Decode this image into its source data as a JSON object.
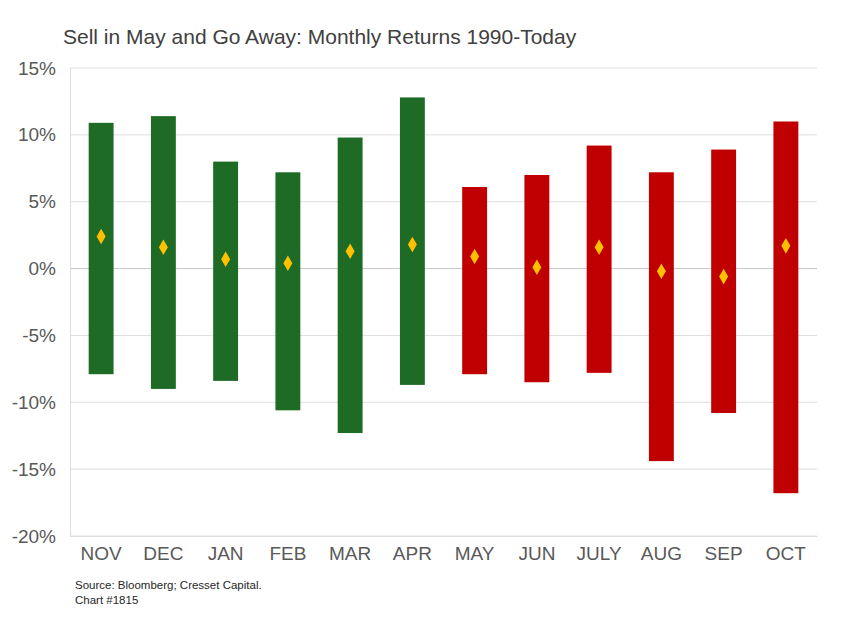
{
  "chart_data": {
    "type": "bar",
    "title": "Sell in May and Go Away: Monthly Returns 1990-Today",
    "categories": [
      "NOV",
      "DEC",
      "JAN",
      "FEB",
      "MAR",
      "APR",
      "MAY",
      "JUN",
      "JULY",
      "AUG",
      "SEP",
      "OCT"
    ],
    "series": [
      {
        "type": "range",
        "low": [
          -7.9,
          -9.0,
          -8.4,
          -10.6,
          -12.3,
          -8.7,
          -7.9,
          -8.5,
          -7.8,
          -14.4,
          -10.8,
          -16.8
        ],
        "high": [
          10.9,
          11.4,
          8.0,
          7.2,
          9.8,
          12.8,
          6.1,
          7.0,
          9.2,
          7.2,
          8.9,
          11.0
        ],
        "colors": [
          "#1d6b25",
          "#1d6b25",
          "#1d6b25",
          "#1d6b25",
          "#1d6b25",
          "#1d6b25",
          "#c00000",
          "#c00000",
          "#c00000",
          "#c00000",
          "#c00000",
          "#c00000"
        ]
      },
      {
        "type": "scatter",
        "marker": "diamond",
        "color": "#ffc000",
        "values": [
          2.4,
          1.6,
          0.7,
          0.4,
          1.3,
          1.8,
          0.9,
          0.1,
          1.6,
          -0.2,
          -0.6,
          1.7
        ]
      }
    ],
    "ylim": [
      -20,
      15
    ],
    "yticks": [
      {
        "value": -20,
        "label": "-20%"
      },
      {
        "value": -15,
        "label": "-15%"
      },
      {
        "value": -10,
        "label": "-10%"
      },
      {
        "value": -5,
        "label": "-5%"
      },
      {
        "value": 0,
        "label": "0%"
      },
      {
        "value": 5,
        "label": "5%"
      },
      {
        "value": 10,
        "label": "10%"
      },
      {
        "value": 15,
        "label": "15%"
      }
    ],
    "grid": true,
    "annotations": [
      "Source: Bloomberg; Cresset Capital.",
      "Chart #1815"
    ]
  }
}
